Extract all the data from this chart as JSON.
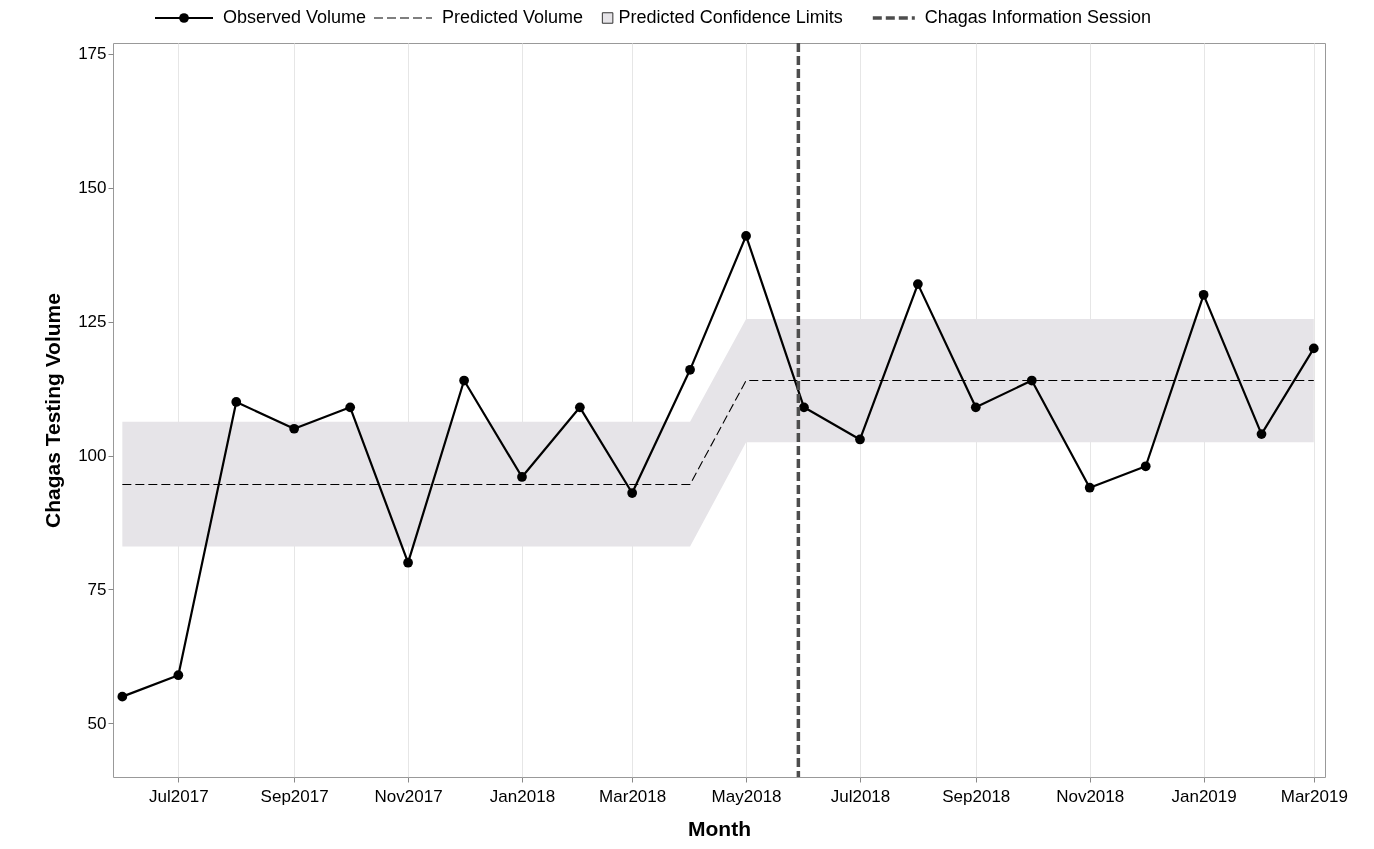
{
  "chart_data": {
    "type": "line",
    "xlabel": "Month",
    "ylabel": "Chagas Testing Volume",
    "x": [
      "2017-06-01",
      "2017-07-01",
      "2017-08-01",
      "2017-09-01",
      "2017-10-01",
      "2017-11-01",
      "2017-12-01",
      "2018-01-01",
      "2018-02-01",
      "2018-03-01",
      "2018-04-01",
      "2018-05-01",
      "2018-06-01",
      "2018-07-01",
      "2018-08-01",
      "2018-09-01",
      "2018-10-01",
      "2018-11-01",
      "2018-12-01",
      "2019-01-01",
      "2019-02-01",
      "2019-03-01"
    ],
    "series": [
      {
        "name": "Predicted Confidence Limits",
        "type": "area",
        "color": "#e6e4e8",
        "values": [
          null,
          null,
          null,
          null,
          null,
          null,
          null,
          null,
          null,
          null,
          null,
          null,
          null,
          null,
          null,
          null,
          null,
          null,
          null,
          null,
          null,
          null
        ],
        "lower": [
          83,
          83,
          83,
          83,
          83,
          83,
          83,
          83,
          83,
          83,
          83,
          102.5,
          102.5,
          102.5,
          102.5,
          102.5,
          102.5,
          102.5,
          102.5,
          102.5,
          102.5,
          102.5
        ],
        "upper": [
          106.3,
          106.3,
          106.3,
          106.3,
          106.3,
          106.3,
          106.3,
          106.3,
          106.3,
          106.3,
          106.3,
          125.5,
          125.5,
          125.5,
          125.5,
          125.5,
          125.5,
          125.5,
          125.5,
          125.5,
          125.5,
          125.5
        ]
      },
      {
        "name": "Predicted Volume",
        "type": "line",
        "color": "#000000",
        "line_style": "dashed",
        "marker": "none",
        "values": [
          94.6,
          94.6,
          94.6,
          94.6,
          94.6,
          94.6,
          94.6,
          94.6,
          94.6,
          94.6,
          94.6,
          114,
          114,
          114,
          114,
          114,
          114,
          114,
          114,
          114,
          114,
          114
        ]
      },
      {
        "name": "Observed Volume",
        "type": "line",
        "color": "#000000",
        "line_style": "solid",
        "marker": "circle",
        "values": [
          55,
          59,
          110,
          105,
          109,
          80,
          114,
          96,
          109,
          93,
          116,
          141,
          109,
          103,
          132,
          109,
          114,
          94,
          98,
          130,
          104,
          120
        ]
      }
    ],
    "ref_lines": [
      {
        "axis": "x",
        "value": "2018-05-29",
        "label": "Chagas Information Session",
        "color": "#4d4d4d",
        "line_style": "dashed"
      }
    ],
    "xlim": [
      "2017-05-27",
      "2019-03-07"
    ],
    "xticks": [
      {
        "value": "2017-07-01",
        "label": "Jul2017"
      },
      {
        "value": "2017-09-01",
        "label": "Sep2017"
      },
      {
        "value": "2017-11-01",
        "label": "Nov2017"
      },
      {
        "value": "2018-01-01",
        "label": "Jan2018"
      },
      {
        "value": "2018-03-01",
        "label": "Mar2018"
      },
      {
        "value": "2018-05-01",
        "label": "May2018"
      },
      {
        "value": "2018-07-01",
        "label": "Jul2018"
      },
      {
        "value": "2018-09-01",
        "label": "Sep2018"
      },
      {
        "value": "2018-11-01",
        "label": "Nov2018"
      },
      {
        "value": "2019-01-01",
        "label": "Jan2019"
      },
      {
        "value": "2019-03-01",
        "label": "Mar2019"
      }
    ],
    "ylim": [
      40,
      177
    ],
    "yticks": [
      50,
      75,
      100,
      125,
      150,
      175
    ],
    "grid": "x",
    "legend": "top"
  }
}
